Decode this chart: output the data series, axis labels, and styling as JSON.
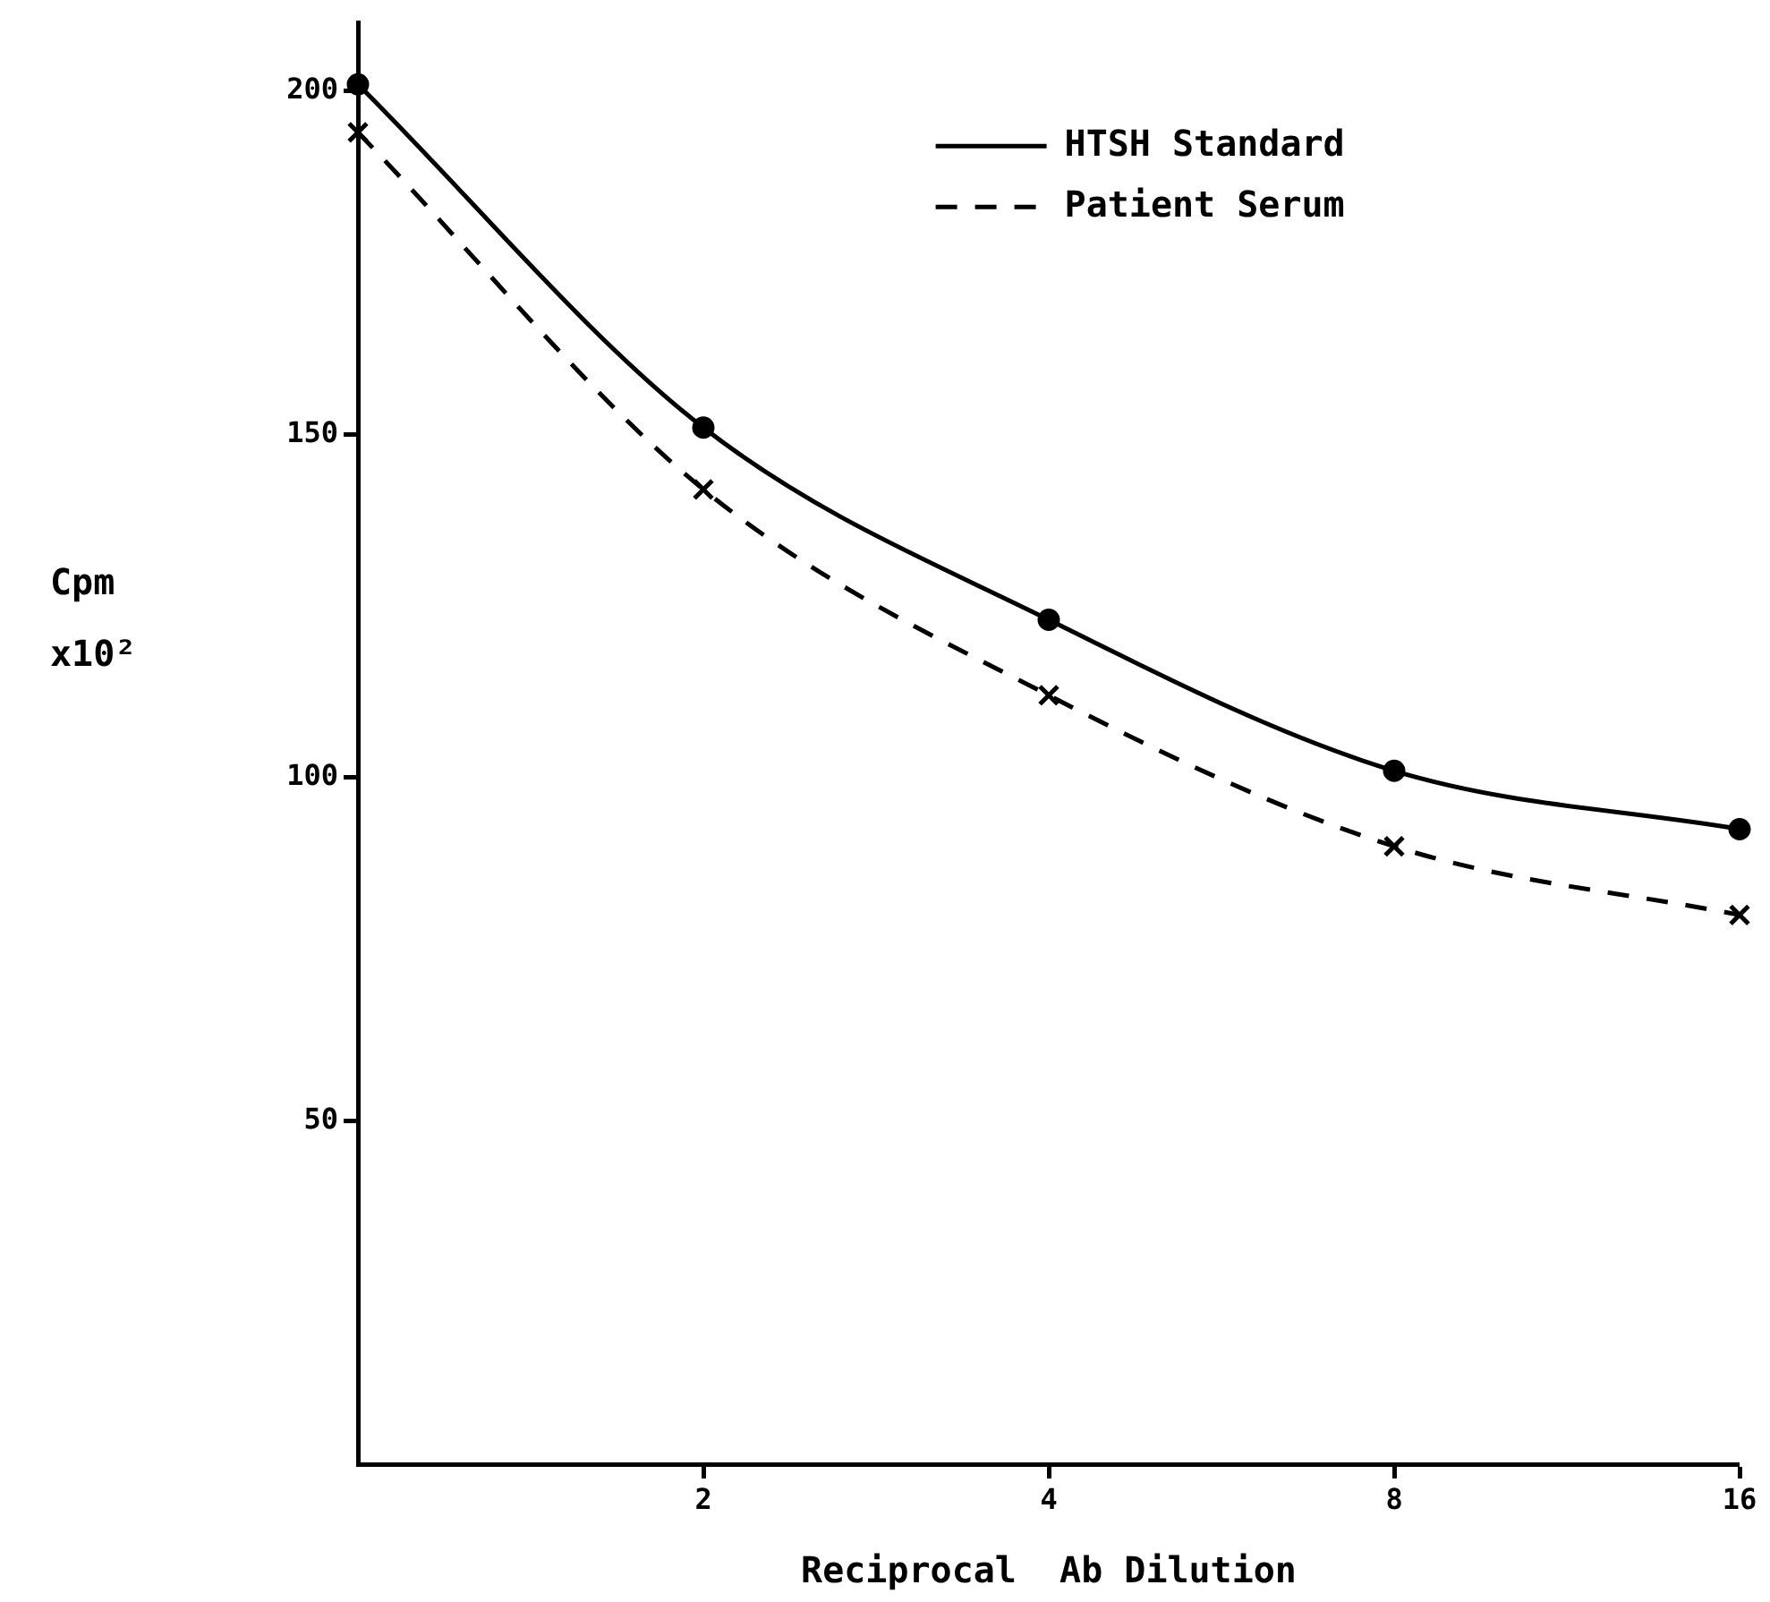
{
  "chart_data": {
    "type": "line",
    "xlabel": "Reciprocal  Ab Dilution",
    "ylabel": "Cpm x10²",
    "categories": [
      null,
      "2",
      "4",
      "8",
      "16"
    ],
    "ylim": [
      0,
      210
    ],
    "yticks": [
      50,
      100,
      150,
      200
    ],
    "grid": false,
    "legend": "top right",
    "series": [
      {
        "name": "HTSH Standard",
        "color": "#000000",
        "marker": "circle",
        "line_style": "solid",
        "values": [
          201,
          151,
          123,
          101,
          92.5
        ]
      },
      {
        "name": "Patient Serum",
        "color": "#000000",
        "marker": "cross",
        "line_style": "dashed",
        "values": [
          194,
          142,
          112,
          90,
          80
        ]
      }
    ]
  }
}
